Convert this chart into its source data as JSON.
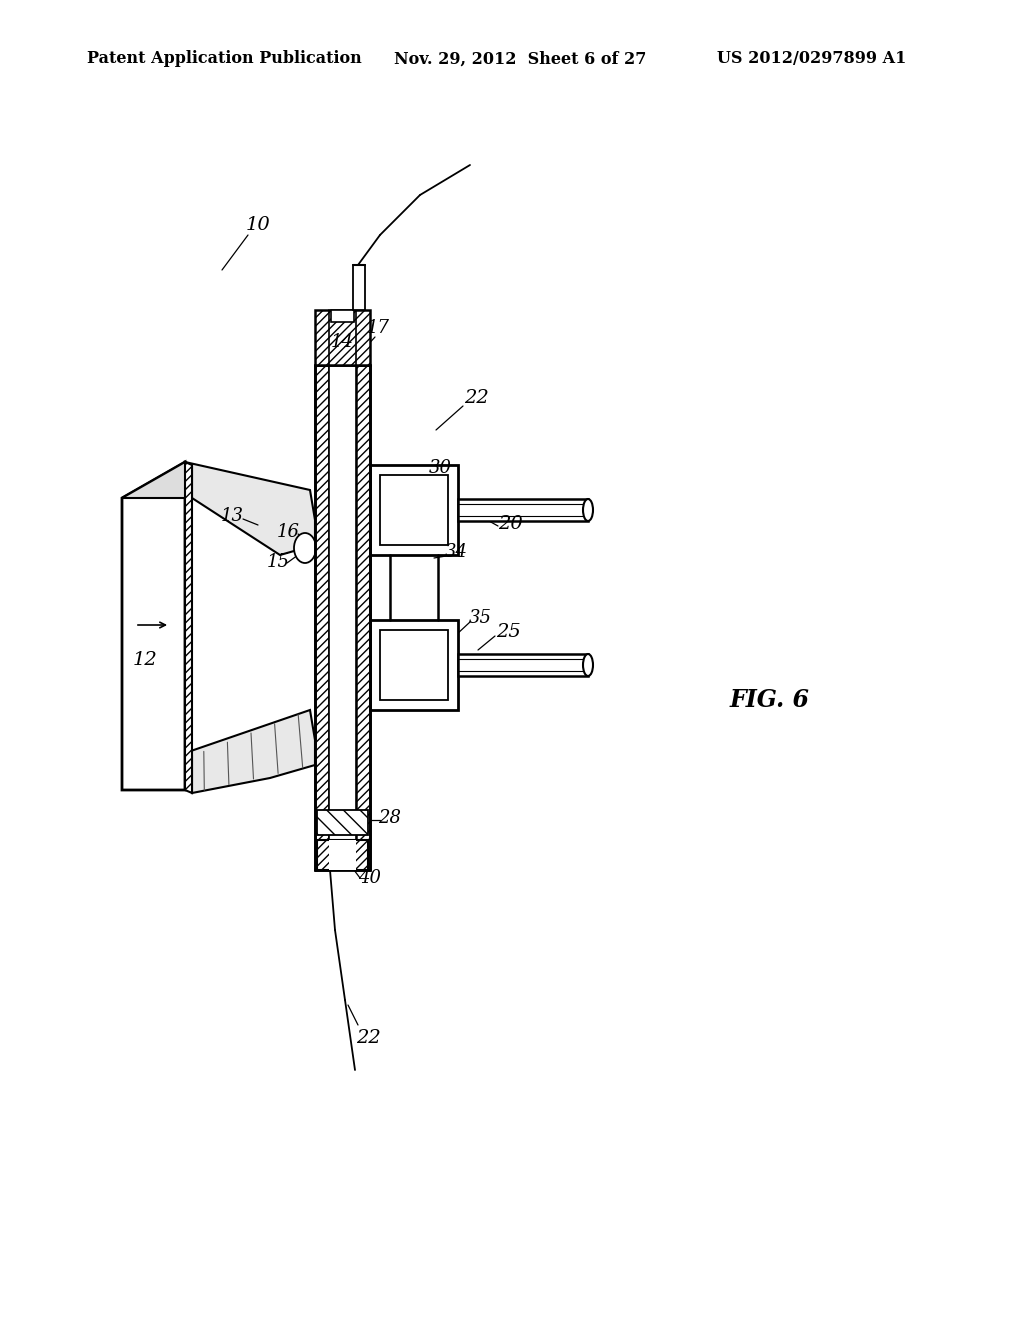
{
  "background_color": "#ffffff",
  "header_left": "Patent Application Publication",
  "header_mid": "Nov. 29, 2012  Sheet 6 of 27",
  "header_right": "US 2012/0297899 A1",
  "fig_label": "FIG. 6",
  "fig_label_fontsize": 17,
  "header_fontsize": 11.5
}
